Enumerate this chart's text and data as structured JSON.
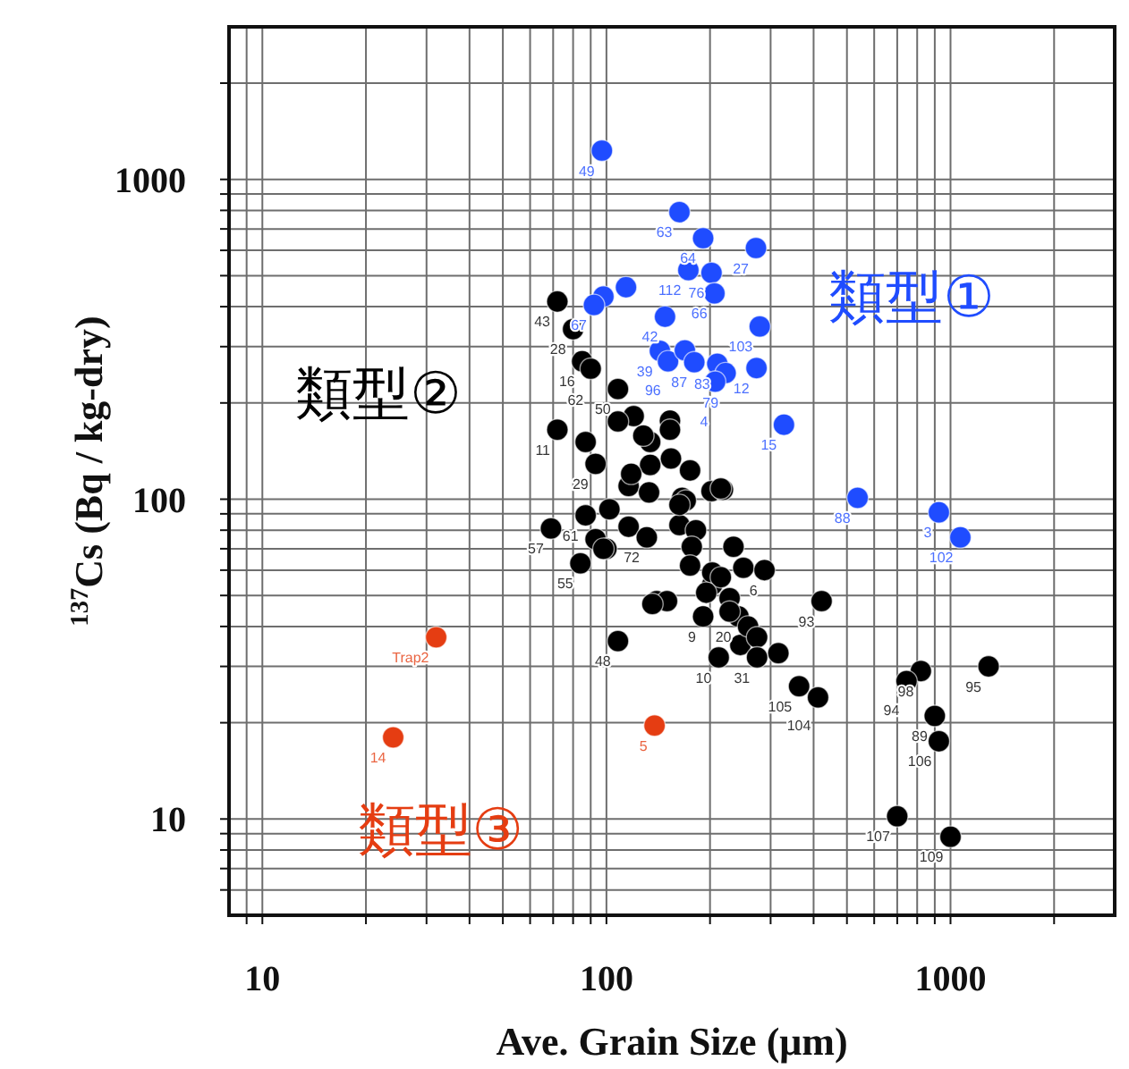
{
  "chart_data": {
    "type": "scatter",
    "xlabel": "Ave. Grain Size (μm)",
    "ylabel": "$^{137}$Cs (Bq / kg-dry)",
    "log": "xy",
    "xlim": [
      8,
      3000
    ],
    "ylim": [
      5,
      3000
    ],
    "xticks": [
      {
        "value": 9,
        "label": null
      },
      10,
      {
        "value": 20,
        "label": null
      },
      {
        "value": 30,
        "label": null
      },
      {
        "value": 40,
        "label": null
      },
      {
        "value": 50,
        "label": null
      },
      {
        "value": 60,
        "label": null
      },
      {
        "value": 70,
        "label": null
      },
      {
        "value": 80,
        "label": null
      },
      {
        "value": 90,
        "label": null
      },
      100,
      {
        "value": 200,
        "label": null
      },
      {
        "value": 300,
        "label": null
      },
      {
        "value": 400,
        "label": null
      },
      {
        "value": 500,
        "label": null
      },
      {
        "value": 600,
        "label": null
      },
      {
        "value": 700,
        "label": null
      },
      {
        "value": 800,
        "label": null
      },
      {
        "value": 900,
        "label": null
      },
      1000,
      {
        "value": 2000,
        "label": null
      }
    ],
    "yticks": [
      {
        "value": 6,
        "label": null
      },
      {
        "value": 7,
        "label": null
      },
      {
        "value": 8,
        "label": null
      },
      {
        "value": 9,
        "label": null
      },
      10,
      {
        "value": 20,
        "label": null
      },
      {
        "value": 30,
        "label": null
      },
      {
        "value": 40,
        "label": null
      },
      {
        "value": 50,
        "label": null
      },
      {
        "value": 60,
        "label": null
      },
      {
        "value": 70,
        "label": null
      },
      {
        "value": 80,
        "label": null
      },
      {
        "value": 90,
        "label": null
      },
      100,
      {
        "value": 200,
        "label": null
      },
      {
        "value": 300,
        "label": null
      },
      {
        "value": 400,
        "label": null
      },
      {
        "value": 500,
        "label": null
      },
      {
        "value": 600,
        "label": null
      },
      {
        "value": 700,
        "label": null
      },
      {
        "value": 800,
        "label": null
      },
      {
        "value": 900,
        "label": null
      },
      1000,
      {
        "value": 2000,
        "label": null
      }
    ],
    "grid": true,
    "marker": "circle",
    "series": [
      {
        "name": "類型②",
        "color": "#000000",
        "x": [
          72,
          80,
          85,
          90,
          108,
          72,
          120,
          108,
          153,
          153,
          87,
          93,
          134,
          128,
          154,
          134,
          175,
          202,
          218,
          166,
          116,
          133,
          102,
          87,
          69,
          116,
          93,
          100,
          84,
          131,
          163,
          182,
          177,
          175,
          234,
          250,
          203,
          228,
          140,
          150,
          108,
          242,
          212,
          245,
          170,
          288,
          203,
          258,
          274,
          316,
          274,
          191,
          422,
          363,
          412,
          1290,
          820,
          745,
          900,
          925,
          700,
          1000,
          118,
          163,
          215,
          215,
          136,
          195,
          228,
          98
        ],
        "values": [
          415,
          340,
          270,
          256,
          221,
          165,
          182,
          175,
          176,
          165,
          151,
          129,
          151,
          158,
          134,
          128,
          123,
          106,
          107,
          101,
          110,
          105,
          93,
          89,
          81,
          82,
          75,
          70,
          63,
          76,
          83,
          80,
          71,
          62,
          71,
          61,
          54,
          49,
          48,
          48,
          36,
          43,
          32,
          35,
          99,
          60,
          59,
          40,
          37,
          33,
          32,
          43,
          48,
          26,
          24,
          30,
          29,
          27,
          21,
          17.5,
          10.2,
          8.8,
          120,
          96,
          108,
          57,
          47,
          51,
          44.5,
          70
        ]
      },
      {
        "name": "類型①",
        "color": "#1f4cff",
        "x": [
          97,
          163,
          191,
          272,
          173,
          202,
          206,
          114,
          98,
          92,
          148,
          279,
          143,
          151,
          169,
          180,
          210,
          222,
          207,
          273,
          328,
          537,
          925,
          1068
        ],
        "values": [
          1230,
          790,
          655,
          610,
          520,
          510,
          440,
          460,
          430,
          405,
          372,
          347,
          291,
          270,
          292,
          268,
          265,
          248,
          233,
          257,
          171,
          101,
          91,
          76
        ]
      },
      {
        "name": "類型③",
        "color": "#e53d12",
        "x": [
          32,
          24,
          138
        ],
        "values": [
          37,
          18,
          19.6
        ]
      }
    ],
    "annotations": [
      {
        "text": "43",
        "x": 72,
        "y": 415
      },
      {
        "text": "28",
        "x": 80,
        "y": 340
      },
      {
        "text": "16",
        "x": 85,
        "y": 270
      },
      {
        "text": "62",
        "x": 90,
        "y": 256
      },
      {
        "text": "50",
        "x": 108,
        "y": 221
      },
      {
        "text": "11",
        "x": 72,
        "y": 165
      },
      {
        "text": "29",
        "x": 93,
        "y": 129
      },
      {
        "text": "61",
        "x": 87,
        "y": 89
      },
      {
        "text": "57",
        "x": 69,
        "y": 81
      },
      {
        "text": "55",
        "x": 84,
        "y": 63
      },
      {
        "text": "72",
        "x": 131,
        "y": 76
      },
      {
        "text": "48",
        "x": 108,
        "y": 36
      },
      {
        "text": "20",
        "x": 242,
        "y": 43
      },
      {
        "text": "10",
        "x": 212,
        "y": 32
      },
      {
        "text": "6",
        "x": 288,
        "y": 60
      },
      {
        "text": "31",
        "x": 274,
        "y": 32
      },
      {
        "text": "9",
        "x": 191,
        "y": 43
      },
      {
        "text": "93",
        "x": 422,
        "y": 48
      },
      {
        "text": "105",
        "x": 363,
        "y": 26
      },
      {
        "text": "104",
        "x": 412,
        "y": 24
      },
      {
        "text": "95",
        "x": 1290,
        "y": 30
      },
      {
        "text": "98",
        "x": 820,
        "y": 29
      },
      {
        "text": "94",
        "x": 745,
        "y": 27
      },
      {
        "text": "89",
        "x": 900,
        "y": 21
      },
      {
        "text": "106",
        "x": 925,
        "y": 17.5
      },
      {
        "text": "107",
        "x": 700,
        "y": 10.2
      },
      {
        "text": "109",
        "x": 1000,
        "y": 8.8
      },
      {
        "text": "49",
        "x": 97,
        "y": 1230
      },
      {
        "text": "63",
        "x": 163,
        "y": 790
      },
      {
        "text": "64",
        "x": 191,
        "y": 655
      },
      {
        "text": "27",
        "x": 272,
        "y": 610
      },
      {
        "text": "112",
        "x": 173,
        "y": 520
      },
      {
        "text": "76",
        "x": 202,
        "y": 510
      },
      {
        "text": "66",
        "x": 206,
        "y": 440
      },
      {
        "text": "67",
        "x": 92,
        "y": 405
      },
      {
        "text": "42",
        "x": 148,
        "y": 372
      },
      {
        "text": "103",
        "x": 279,
        "y": 347
      },
      {
        "text": "39",
        "x": 143,
        "y": 291
      },
      {
        "text": "96",
        "x": 151,
        "y": 270
      },
      {
        "text": "87",
        "x": 180,
        "y": 268
      },
      {
        "text": "83",
        "x": 210,
        "y": 265
      },
      {
        "text": "79",
        "x": 222,
        "y": 248
      },
      {
        "text": "4",
        "x": 207,
        "y": 233
      },
      {
        "text": "12",
        "x": 273,
        "y": 257
      },
      {
        "text": "15",
        "x": 328,
        "y": 171
      },
      {
        "text": "88",
        "x": 537,
        "y": 101
      },
      {
        "text": "3",
        "x": 925,
        "y": 91
      },
      {
        "text": "102",
        "x": 1068,
        "y": 76
      },
      {
        "text": "Trap2",
        "x": 32,
        "y": 37
      },
      {
        "text": "14",
        "x": 24,
        "y": 18
      },
      {
        "text": "5",
        "x": 138,
        "y": 19.6
      }
    ]
  }
}
